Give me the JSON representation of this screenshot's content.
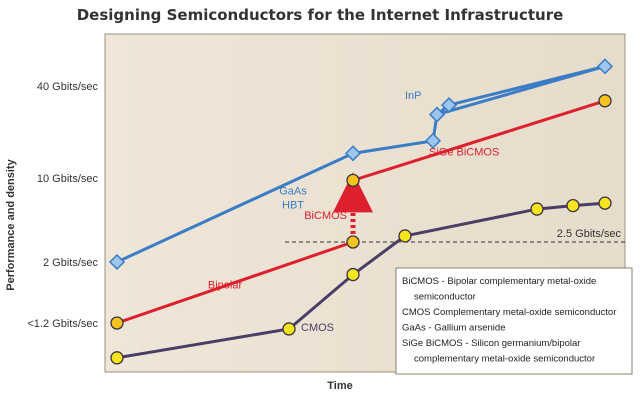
{
  "chart_data": {
    "type": "line",
    "title": "Designing Semiconductors for the Internet Infrastructure",
    "xlabel": "Time",
    "ylabel": "Performance and density",
    "y_ticks": [
      "40 Gbits/sec",
      "10 Gbits/sec",
      "2 Gbits/sec",
      "<1.2 Gbits/sec"
    ],
    "reference_line": {
      "label": "2.5 Gbits/sec",
      "y": 2.5
    },
    "series": [
      {
        "name": "GaAs HBT",
        "label_lines": [
          "GaAs",
          "HBT"
        ],
        "color": "#3a7cc6",
        "marker_color": "#9cc6ee",
        "marker": "diamond",
        "points": [
          [
            0.3,
            2.0
          ],
          [
            6.2,
            14.5
          ],
          [
            8.2,
            17.5
          ],
          [
            8.3,
            26.0
          ],
          [
            12.5,
            44.0
          ]
        ]
      },
      {
        "name": "InP",
        "label_lines": [
          "InP"
        ],
        "color": "#3a7cc6",
        "marker_color": "#9cc6ee",
        "marker": "diamond",
        "points": [
          [
            8.3,
            26.0
          ],
          [
            8.6,
            30.0
          ],
          [
            12.5,
            44.0
          ]
        ]
      },
      {
        "name": "Bipolar",
        "label_lines": [
          "Bipolar"
        ],
        "color": "#dd1f2e",
        "marker_color": "#f6c21c",
        "marker": "circle",
        "points": [
          [
            0.3,
            1.2
          ],
          [
            6.2,
            2.5
          ]
        ]
      },
      {
        "name": "SiGe BiCMOS",
        "label_lines": [
          "SiGe BiCMOS"
        ],
        "color": "#dd1f2e",
        "marker_color": "#f6c21c",
        "marker": "circle",
        "points": [
          [
            6.2,
            9.5
          ],
          [
            12.5,
            32.0
          ]
        ]
      },
      {
        "name": "CMOS",
        "label_lines": [
          "CMOS"
        ],
        "color": "#4a3e66",
        "marker_color": "#f6e41c",
        "marker": "circle",
        "points": [
          [
            0.3,
            0.55
          ],
          [
            4.6,
            1.05
          ],
          [
            6.2,
            1.8
          ],
          [
            7.5,
            2.85
          ],
          [
            10.8,
            5.1
          ],
          [
            11.7,
            5.5
          ],
          [
            12.5,
            5.8
          ]
        ]
      }
    ],
    "annotation": {
      "label": "BiCMOS",
      "from": [
        6.2,
        2.5
      ],
      "to": [
        6.2,
        9.5
      ]
    },
    "legend": {
      "placement": "bottom-right",
      "lines": [
        "BiCMOS - Bipolar complementary metal-oxide",
        "semiconductor",
        "CMOS   Complementary metal-oxide semiconductor",
        "GaAs - Gallium arsenide",
        "SiGe BiCMOS - Silicon germanium/bipolar",
        "complementary metal-oxide semiconductor"
      ]
    }
  }
}
